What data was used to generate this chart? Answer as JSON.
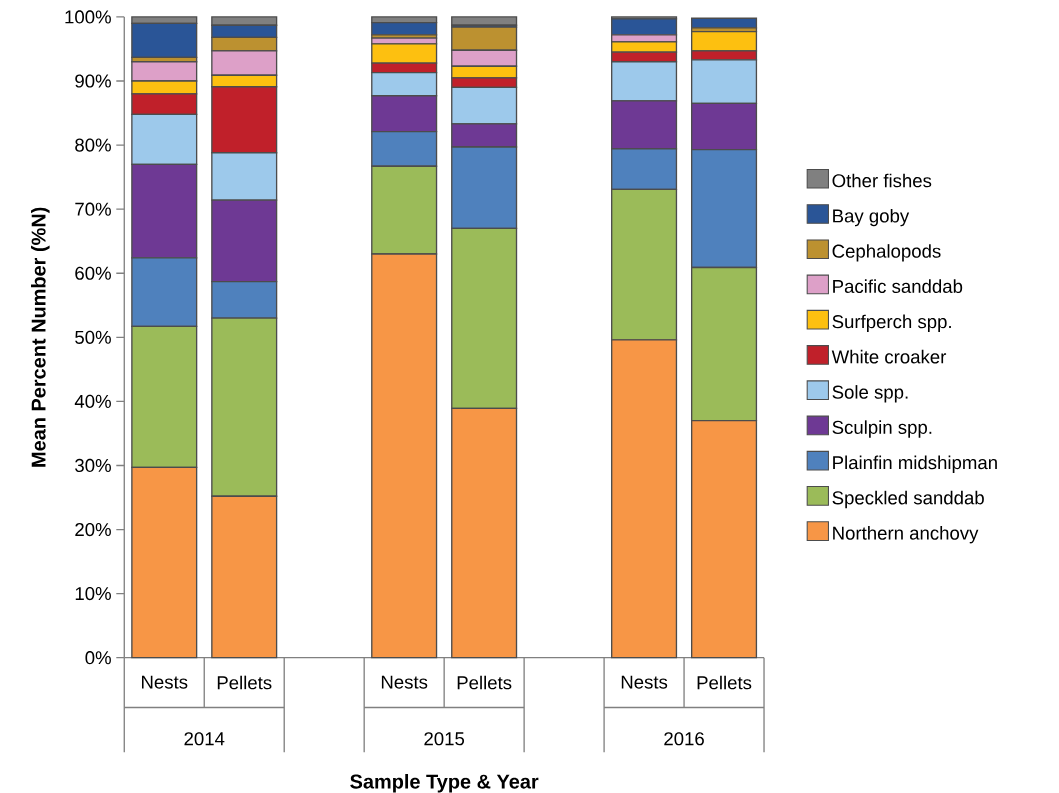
{
  "chart_data": {
    "type": "bar",
    "stacked": true,
    "xlabel": "Sample Type & Year",
    "ylabel": "Mean Percent Number (%N)",
    "categories": [
      "Nests",
      "Pellets",
      null,
      "Nests",
      "Pellets",
      null,
      "Nests",
      "Pellets"
    ],
    "annotations": [
      "2014",
      "2015",
      "2016"
    ],
    "ylim": [
      0,
      100
    ],
    "yticks": [
      {
        "value": 0,
        "label": "0%"
      },
      {
        "value": 10,
        "label": "10%"
      },
      {
        "value": 20,
        "label": "20%"
      },
      {
        "value": 30,
        "label": "30%"
      },
      {
        "value": 40,
        "label": "40%"
      },
      {
        "value": 50,
        "label": "50%"
      },
      {
        "value": 60,
        "label": "60%"
      },
      {
        "value": 70,
        "label": "70%"
      },
      {
        "value": 80,
        "label": "80%"
      },
      {
        "value": 90,
        "label": "90%"
      },
      {
        "value": 100,
        "label": "100%"
      }
    ],
    "legend": "right",
    "series": [
      {
        "name": "Northern anchovy",
        "color": "#f79646",
        "values": [
          29.7,
          25.2,
          null,
          63.0,
          38.9,
          null,
          49.6,
          37.0
        ]
      },
      {
        "name": "Speckled sanddab",
        "color": "#9bbb59",
        "values": [
          22.0,
          27.8,
          null,
          13.7,
          28.1,
          null,
          23.5,
          23.9
        ]
      },
      {
        "name": "Plainfin midshipman",
        "color": "#4f81bd",
        "values": [
          10.7,
          5.7,
          null,
          5.4,
          12.7,
          null,
          6.3,
          18.4
        ]
      },
      {
        "name": "Sculpin spp.",
        "color": "#6e3994",
        "values": [
          14.6,
          12.7,
          null,
          5.6,
          3.6,
          null,
          7.5,
          7.2
        ]
      },
      {
        "name": "Sole spp.",
        "color": "#9dc9eb",
        "values": [
          7.8,
          7.4,
          null,
          3.6,
          5.7,
          null,
          6.1,
          6.8
        ]
      },
      {
        "name": "White croaker",
        "color": "#c0202a",
        "values": [
          3.2,
          10.3,
          null,
          1.5,
          1.5,
          null,
          1.5,
          1.4
        ]
      },
      {
        "name": "Surfperch spp.",
        "color": "#fdc010",
        "values": [
          2.0,
          1.8,
          null,
          3.0,
          1.8,
          null,
          1.6,
          3.0
        ]
      },
      {
        "name": "Pacific sanddab",
        "color": "#dda0c8",
        "values": [
          3.0,
          3.8,
          null,
          0.9,
          2.5,
          null,
          1.1,
          null
        ]
      },
      {
        "name": "Cephalopods",
        "color": "#bc9130",
        "values": [
          0.7,
          2.1,
          null,
          0.5,
          3.6,
          null,
          0,
          0.6
        ]
      },
      {
        "name": "Bay goby",
        "color": "#2a5597",
        "values": [
          5.3,
          1.9,
          null,
          1.9,
          0.3,
          null,
          2.5,
          1.5
        ]
      },
      {
        "name": "Other fishes",
        "color": "#808080",
        "values": [
          1.0,
          1.3,
          null,
          0.9,
          1.3,
          null,
          0.3,
          0
        ]
      }
    ]
  }
}
